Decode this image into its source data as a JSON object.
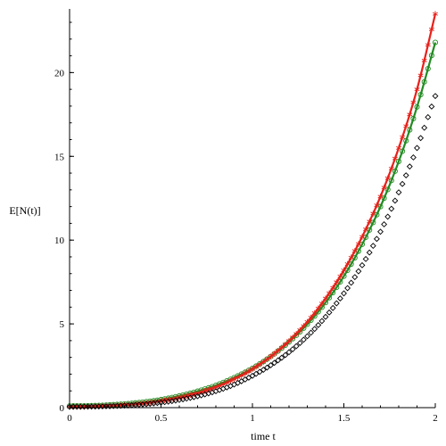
{
  "chart_data": {
    "type": "scatter",
    "title": "",
    "xlabel": "time t",
    "ylabel": "E[N(t)]",
    "xlim": [
      0,
      2
    ],
    "ylim": [
      0,
      23.8
    ],
    "xticks": [
      0,
      0.5,
      1,
      1.5,
      2
    ],
    "xtick_labels": [
      "0",
      "0.5",
      "1",
      "1.5",
      "2"
    ],
    "yticks": [
      0,
      5,
      10,
      15,
      20
    ],
    "ytick_labels": [
      "0",
      "5",
      "10",
      "15",
      "20"
    ],
    "grid": false,
    "legend": "none",
    "series": [
      {
        "color": "#228b22",
        "marker": "line+circle",
        "x": [
          0,
          0.1,
          0.2,
          0.3,
          0.4,
          0.5,
          0.6,
          0.7,
          0.8,
          0.9,
          1.0,
          1.1,
          1.2,
          1.3,
          1.4,
          1.5,
          1.6,
          1.7,
          1.8,
          1.9,
          2.0
        ],
        "y": [
          0.1,
          0.11,
          0.15,
          0.22,
          0.33,
          0.48,
          0.7,
          0.98,
          1.33,
          1.79,
          2.35,
          3.05,
          3.92,
          4.98,
          6.27,
          7.85,
          9.75,
          12.0,
          14.7,
          17.95,
          21.8
        ]
      },
      {
        "color": "#e8201a",
        "marker": "line+star",
        "x": [
          0,
          0.1,
          0.2,
          0.3,
          0.4,
          0.5,
          0.6,
          0.7,
          0.8,
          0.9,
          1.0,
          1.1,
          1.2,
          1.3,
          1.4,
          1.5,
          1.6,
          1.7,
          1.8,
          1.9,
          2.0
        ],
        "y": [
          0.05,
          0.06,
          0.1,
          0.16,
          0.25,
          0.4,
          0.6,
          0.87,
          1.22,
          1.7,
          2.3,
          3.05,
          3.98,
          5.12,
          6.52,
          8.2,
          10.2,
          12.6,
          15.5,
          19.0,
          23.5
        ]
      },
      {
        "color": "#000000",
        "marker": "diamond",
        "x": [
          0,
          0.1,
          0.2,
          0.3,
          0.4,
          0.5,
          0.6,
          0.7,
          0.8,
          0.9,
          1.0,
          1.1,
          1.2,
          1.3,
          1.4,
          1.5,
          1.6,
          1.7,
          1.8,
          1.9,
          2.0
        ],
        "y": [
          0.05,
          0.06,
          0.08,
          0.12,
          0.19,
          0.3,
          0.46,
          0.68,
          0.98,
          1.38,
          1.9,
          2.53,
          3.31,
          4.26,
          5.42,
          6.82,
          8.5,
          10.5,
          12.85,
          15.5,
          18.6
        ]
      }
    ]
  }
}
